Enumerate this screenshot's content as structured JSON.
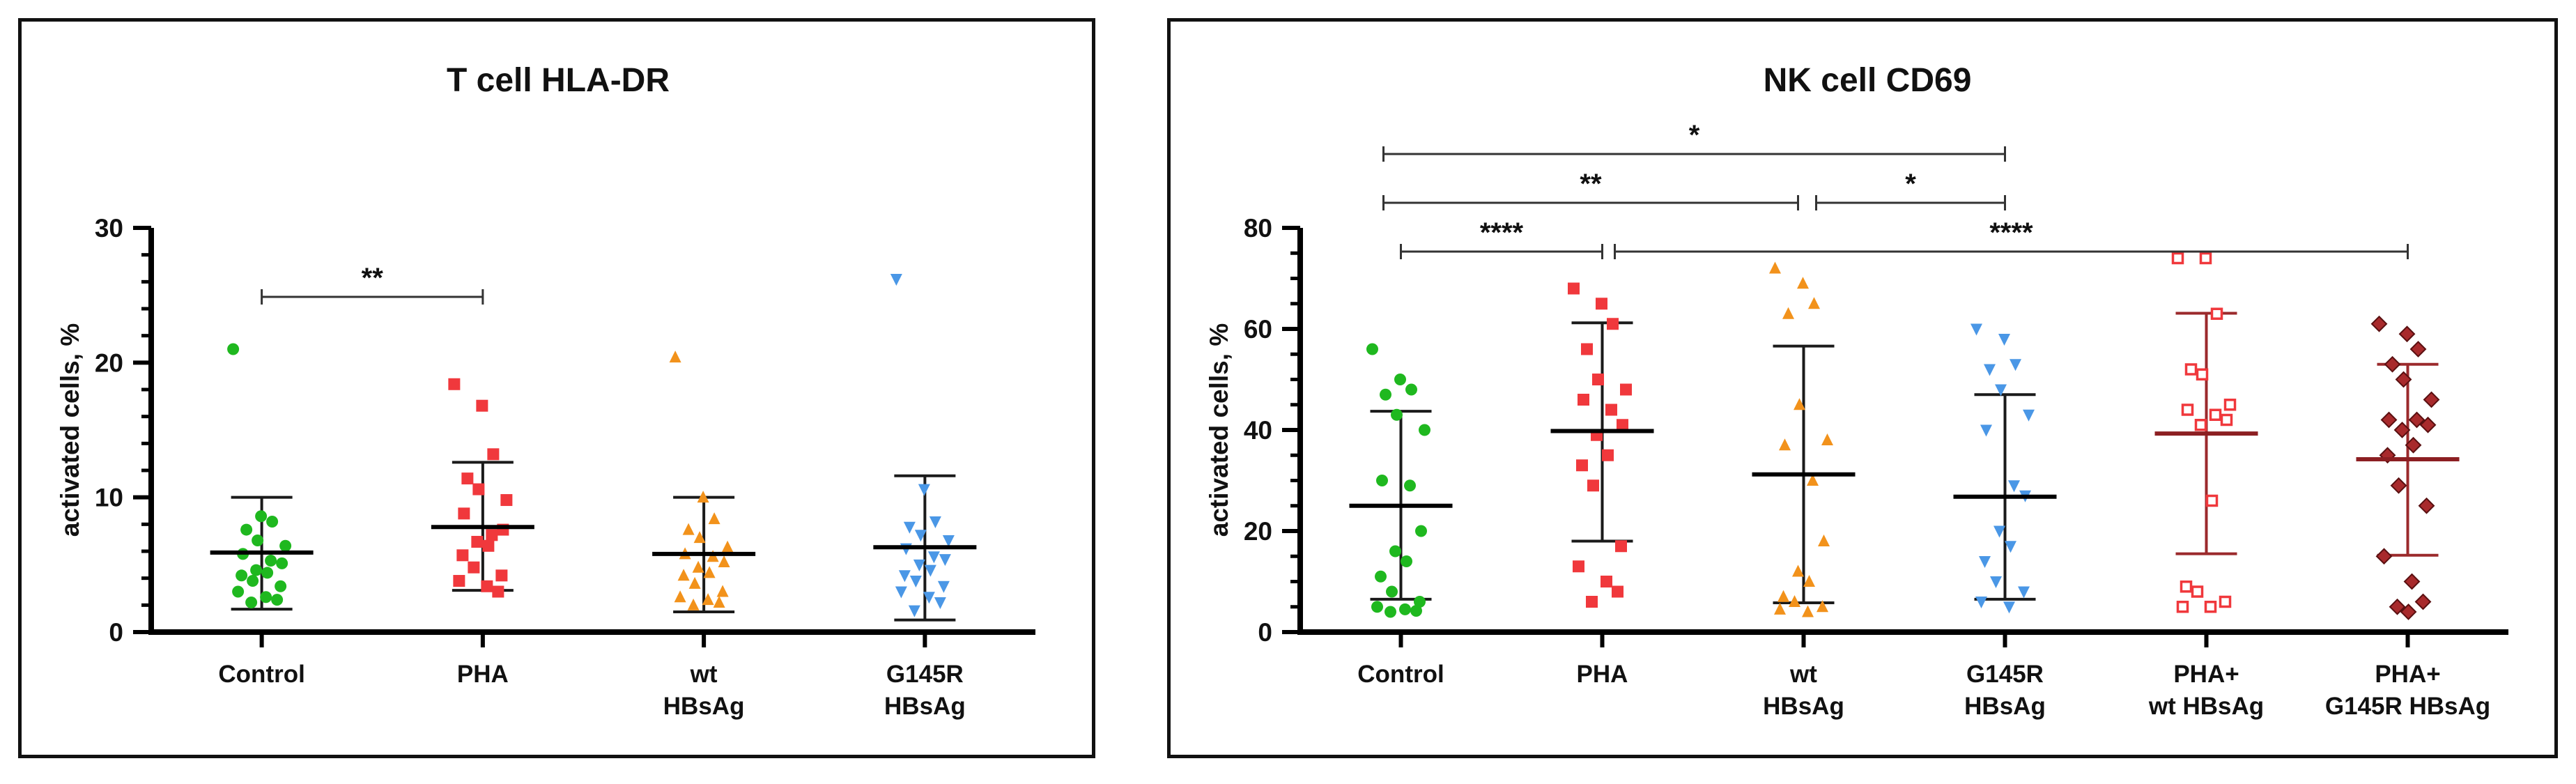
{
  "chart_data": [
    {
      "type": "scatter",
      "title": "T cell HLA-DR",
      "xlabel": "",
      "ylabel": "activated cells, %",
      "ylim": [
        0,
        30
      ],
      "yticks": [
        "0",
        "10",
        "20",
        "30"
      ],
      "categories": [
        {
          "lines": [
            "Control"
          ]
        },
        {
          "lines": [
            "PHA"
          ]
        },
        {
          "lines": [
            "wt",
            "HBsAg"
          ]
        },
        {
          "lines": [
            "G145R",
            "HBsAg"
          ]
        }
      ],
      "series": [
        {
          "name": "Control",
          "color": "#1fb81f",
          "marker": "circle",
          "values": [
            21.0,
            8.6,
            8.2,
            7.6,
            6.8,
            6.4,
            5.8,
            5.3,
            5.1,
            4.6,
            4.4,
            4.2,
            3.8,
            3.4,
            3.0,
            2.6,
            2.4,
            2.2
          ],
          "mean": 5.9,
          "sd_low": 1.7,
          "sd_high": 10.0
        },
        {
          "name": "PHA",
          "color": "#f0383c",
          "marker": "square",
          "values": [
            18.4,
            16.8,
            13.2,
            11.4,
            10.6,
            9.8,
            8.8,
            7.2,
            7.6,
            6.7,
            6.4,
            5.7,
            4.8,
            4.2,
            3.8,
            3.4,
            3.0
          ],
          "mean": 7.8,
          "sd_low": 3.1,
          "sd_high": 12.6
        },
        {
          "name": "wt HBsAg",
          "color": "#f2921b",
          "marker": "triangle-up",
          "values": [
            20.4,
            10.0,
            8.4,
            7.6,
            7.0,
            6.3,
            5.8,
            5.6,
            5.2,
            4.8,
            4.4,
            4.2,
            3.6,
            3.0,
            2.6,
            2.4,
            2.2,
            2.0
          ],
          "mean": 5.8,
          "sd_low": 1.5,
          "sd_high": 10.0
        },
        {
          "name": "G145R HBsAg",
          "color": "#4a97e6",
          "marker": "triangle-down",
          "values": [
            26.2,
            10.6,
            8.2,
            7.8,
            7.2,
            6.8,
            6.2,
            5.6,
            5.4,
            5.0,
            4.6,
            4.2,
            3.8,
            3.4,
            3.0,
            2.6,
            2.2,
            1.6
          ],
          "mean": 6.3,
          "sd_low": 0.9,
          "sd_high": 11.6
        }
      ],
      "significance": [
        {
          "from": 0,
          "to": 1,
          "label": "**",
          "level": 0
        }
      ]
    },
    {
      "type": "scatter",
      "title": "NK cell CD69",
      "xlabel": "",
      "ylabel": "activated cells, %",
      "ylim": [
        0,
        80
      ],
      "yticks": [
        "0",
        "20",
        "40",
        "60",
        "80"
      ],
      "categories": [
        {
          "lines": [
            "Control"
          ]
        },
        {
          "lines": [
            "PHA"
          ]
        },
        {
          "lines": [
            "wt",
            "HBsAg"
          ]
        },
        {
          "lines": [
            "G145R",
            "HBsAg"
          ]
        },
        {
          "lines": [
            "PHA+",
            "wt HBsAg"
          ]
        },
        {
          "lines": [
            "PHA+",
            "G145R HBsAg"
          ]
        }
      ],
      "series": [
        {
          "name": "Control",
          "color": "#1fb81f",
          "marker": "circle",
          "values": [
            56.0,
            50.0,
            48.0,
            47.0,
            43.0,
            40.0,
            30.0,
            29.0,
            20.0,
            16.0,
            14.0,
            11.0,
            8.0,
            6.0,
            5.0,
            4.5,
            4.2,
            4.0
          ],
          "mean": 25.0,
          "sd_low": 6.5,
          "sd_high": 43.7
        },
        {
          "name": "PHA",
          "color": "#f0383c",
          "marker": "square",
          "values": [
            68.0,
            65.0,
            61.0,
            56.0,
            50.0,
            48.0,
            46.0,
            44.0,
            41.0,
            39.0,
            35.0,
            33.0,
            29.0,
            17.0,
            13.0,
            10.0,
            8.0,
            6.0
          ],
          "mean": 39.8,
          "sd_low": 18.0,
          "sd_high": 61.2
        },
        {
          "name": "wt HBsAg",
          "color": "#f2921b",
          "marker": "triangle-up",
          "values": [
            72.0,
            69.0,
            65.0,
            63.0,
            45.0,
            38.0,
            37.0,
            30.0,
            18.0,
            12.0,
            10.0,
            7.0,
            6.0,
            5.0,
            4.5,
            4.0
          ],
          "mean": 31.2,
          "sd_low": 5.8,
          "sd_high": 56.6
        },
        {
          "name": "G145R HBsAg",
          "color": "#4a97e6",
          "marker": "triangle-down",
          "values": [
            60.0,
            58.0,
            53.0,
            52.0,
            48.0,
            43.0,
            40.0,
            29.0,
            27.0,
            20.0,
            17.0,
            14.0,
            10.0,
            8.0,
            6.0,
            5.0
          ],
          "mean": 26.8,
          "sd_low": 6.5,
          "sd_high": 47.0
        },
        {
          "name": "PHA+ wt HBsAg",
          "color": "#f0383c",
          "marker": "square-open",
          "values": [
            74.0,
            74.0,
            63.0,
            52.0,
            51.0,
            45.0,
            44.0,
            43.0,
            42.0,
            41.0,
            26.0,
            9.0,
            8.0,
            6.0,
            5.0,
            5.0
          ],
          "mean": 39.3,
          "sd_low": 15.5,
          "sd_high": 63.1
        },
        {
          "name": "PHA+ G145R HBsAg",
          "color": "#a82a2c",
          "marker": "diamond",
          "values": [
            61.0,
            59.0,
            56.0,
            53.0,
            50.0,
            46.0,
            42.0,
            42.0,
            41.0,
            40.0,
            37.0,
            35.0,
            29.0,
            25.0,
            15.0,
            10.0,
            6.0,
            5.0,
            4.0
          ],
          "mean": 34.2,
          "sd_low": 15.2,
          "sd_high": 53.0
        }
      ],
      "significance": [
        {
          "from": 0,
          "to": 1,
          "label": "****",
          "level": 0
        },
        {
          "from": 1,
          "to": 5,
          "label": "****",
          "level": 0
        },
        {
          "from": 0,
          "to": 2,
          "label": "**",
          "level": 1
        },
        {
          "from": 2,
          "to": 3,
          "label": "*",
          "level": 1
        },
        {
          "from": 0,
          "to": 3,
          "label": "*",
          "level": 2
        }
      ]
    }
  ]
}
